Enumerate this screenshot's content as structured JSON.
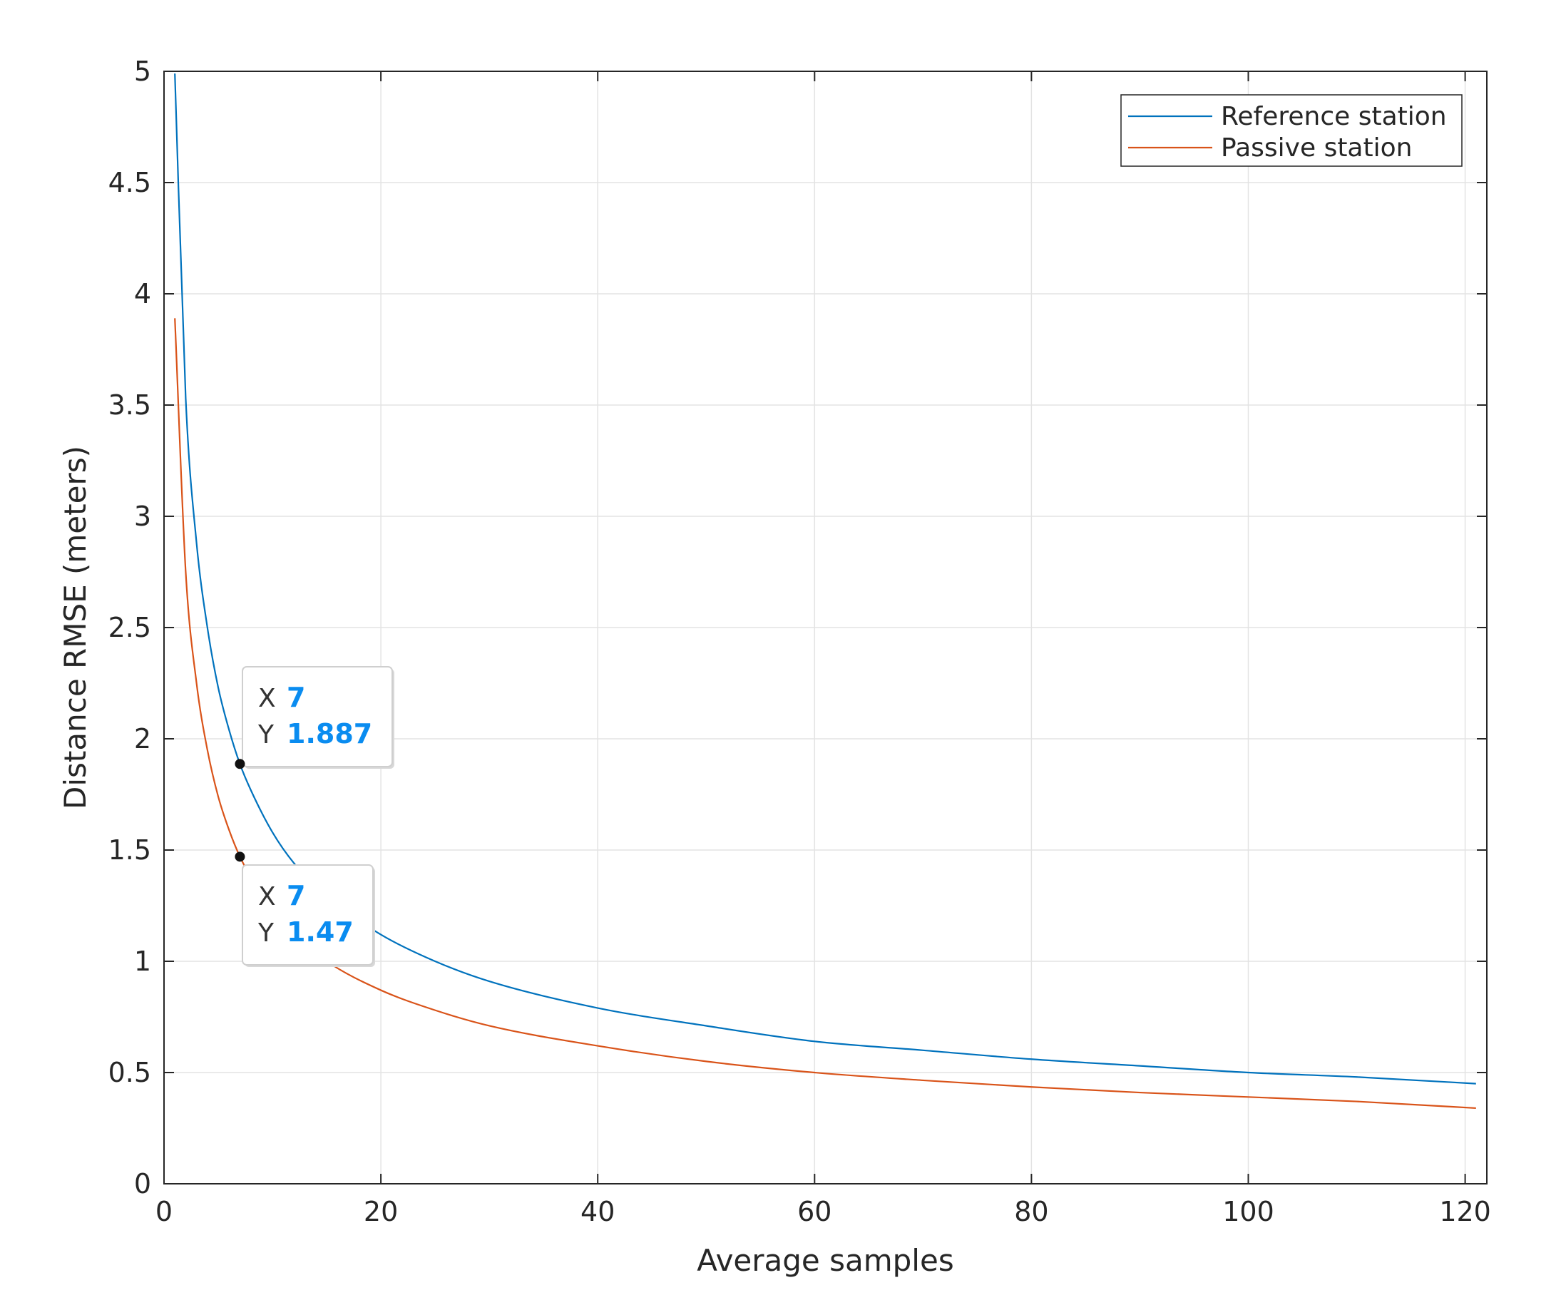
{
  "chart_data": {
    "type": "line",
    "title": "",
    "xlabel": "Average samples",
    "ylabel": "Distance RMSE (meters)",
    "xlim": [
      0,
      122
    ],
    "ylim": [
      0,
      5
    ],
    "xticks": [
      0,
      20,
      40,
      60,
      80,
      100,
      120
    ],
    "xtick_labels": [
      "0",
      "20",
      "40",
      "60",
      "80",
      "100",
      "120"
    ],
    "yticks": [
      0,
      0.5,
      1,
      1.5,
      2,
      2.5,
      3,
      3.5,
      4,
      4.5,
      5
    ],
    "ytick_labels": [
      "0",
      "0.5",
      "1",
      "1.5",
      "2",
      "2.5",
      "3",
      "3.5",
      "4",
      "4.5",
      "5"
    ],
    "grid": true,
    "legend_position": "top-right",
    "series": [
      {
        "name": "Reference station",
        "color": "#0072bd",
        "x": [
          1,
          2,
          3,
          4,
          5,
          6,
          7,
          8,
          10,
          12,
          15,
          20,
          25,
          30,
          40,
          50,
          60,
          70,
          80,
          90,
          100,
          110,
          121
        ],
        "y": [
          4.99,
          3.53,
          2.88,
          2.5,
          2.23,
          2.04,
          1.887,
          1.77,
          1.58,
          1.44,
          1.29,
          1.12,
          1.0,
          0.91,
          0.79,
          0.71,
          0.64,
          0.6,
          0.56,
          0.53,
          0.5,
          0.48,
          0.45
        ]
      },
      {
        "name": "Passive station",
        "color": "#d95319",
        "x": [
          1,
          2,
          3,
          4,
          5,
          6,
          7,
          8,
          10,
          12,
          15,
          20,
          25,
          30,
          40,
          50,
          60,
          70,
          80,
          90,
          100,
          110,
          121
        ],
        "y": [
          3.89,
          2.75,
          2.25,
          1.95,
          1.74,
          1.59,
          1.47,
          1.38,
          1.23,
          1.12,
          1.0,
          0.87,
          0.78,
          0.71,
          0.62,
          0.55,
          0.5,
          0.465,
          0.435,
          0.41,
          0.39,
          0.37,
          0.34
        ]
      }
    ],
    "datatips": [
      {
        "series": "Reference station",
        "x_key": "X",
        "x_value": "7",
        "y_key": "Y",
        "y_value": "1.887",
        "x": 7,
        "y": 1.887
      },
      {
        "series": "Passive station",
        "x_key": "X",
        "x_value": "7",
        "y_key": "Y",
        "y_value": "1.47",
        "x": 7,
        "y": 1.47
      }
    ]
  }
}
